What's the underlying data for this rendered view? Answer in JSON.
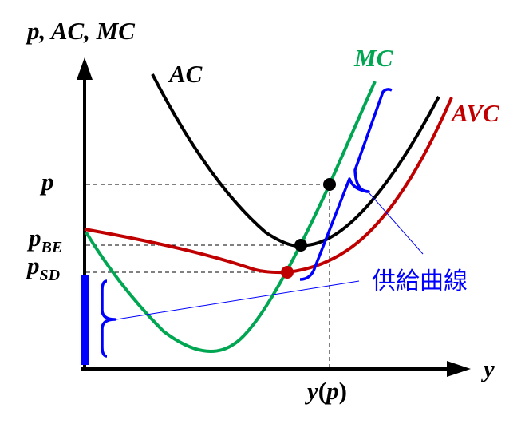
{
  "axes": {
    "y_axis_label": "p, AC, MC",
    "x_axis_label": "y"
  },
  "price_ticks": {
    "p": "p",
    "p_be_main": "p",
    "p_be_sub": "BE",
    "p_sd_main": "p",
    "p_sd_sub": "SD"
  },
  "quantity_tick": {
    "main": "y",
    "open": "(",
    "arg": "p",
    "close": ")"
  },
  "curves": {
    "ac": {
      "label": "AC",
      "color": "#000000"
    },
    "mc": {
      "label": "MC",
      "color": "#00a651"
    },
    "avc": {
      "label": "AVC",
      "color": "#c00000"
    }
  },
  "annotation": {
    "supply_curve_label": "供給曲線",
    "color": "#0000ff"
  }
}
